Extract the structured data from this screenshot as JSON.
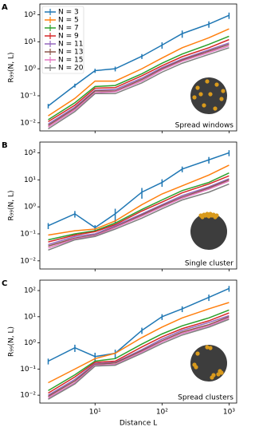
{
  "chart_data": [
    {
      "type": "line",
      "panel": "A",
      "ylabel": "R₉₉(N, L)",
      "annotation": "Spread windows",
      "xscale": "log",
      "yscale": "log",
      "xlim": [
        1.5,
        1300
      ],
      "ylim": [
        0.005,
        250
      ],
      "xticks": [
        10,
        100,
        1000
      ],
      "yticks": [
        {
          "value": 0.01,
          "label": "10⁻²"
        },
        {
          "value": 0.1,
          "label": "10⁻¹"
        },
        {
          "value": 1,
          "label": "10⁰"
        },
        {
          "value": 10,
          "label": "10¹"
        },
        {
          "value": 100,
          "label": "10²"
        }
      ],
      "legend": true,
      "legend_position": "upper left",
      "x": [
        2,
        5,
        10,
        20,
        50,
        100,
        200,
        500,
        1000
      ],
      "series": [
        {
          "name": "N = 3",
          "color": "#1f77b4",
          "values": [
            0.042,
            0.24,
            0.85,
            1.0,
            2.9,
            7.5,
            20,
            45,
            95
          ],
          "errors": [
            0.008,
            0.04,
            0.15,
            0.2,
            0.6,
            2,
            6,
            12,
            25
          ]
        },
        {
          "name": "N = 5",
          "color": "#ff7f0e",
          "values": [
            0.018,
            0.08,
            0.35,
            0.35,
            1.0,
            2.5,
            6,
            14,
            30
          ]
        },
        {
          "name": "N = 7",
          "color": "#2ca02c",
          "values": [
            0.013,
            0.055,
            0.22,
            0.24,
            0.65,
            1.6,
            3.5,
            8,
            16
          ]
        },
        {
          "name": "N = 9",
          "color": "#d62728",
          "values": [
            0.011,
            0.045,
            0.19,
            0.2,
            0.55,
            1.3,
            2.8,
            6,
            12
          ]
        },
        {
          "name": "N = 11",
          "color": "#9467bd",
          "values": [
            0.009,
            0.038,
            0.16,
            0.17,
            0.45,
            1.1,
            2.3,
            5,
            9
          ]
        },
        {
          "name": "N = 13",
          "color": "#8c564b",
          "values": [
            0.008,
            0.034,
            0.15,
            0.15,
            0.4,
            1.0,
            2.1,
            4.5,
            8
          ]
        },
        {
          "name": "N = 15",
          "color": "#e377c2",
          "values": [
            0.007,
            0.03,
            0.13,
            0.14,
            0.35,
            0.9,
            1.9,
            4,
            7
          ]
        },
        {
          "name": "N = 20",
          "color": "#7f7f7f",
          "values": [
            0.006,
            0.026,
            0.12,
            0.12,
            0.3,
            0.75,
            1.6,
            3.4,
            6
          ]
        }
      ]
    },
    {
      "type": "line",
      "panel": "B",
      "ylabel": "R₉₉(N, L)",
      "annotation": "Single cluster",
      "xscale": "log",
      "yscale": "log",
      "xlim": [
        1.5,
        1300
      ],
      "ylim": [
        0.005,
        250
      ],
      "xticks": [
        10,
        100,
        1000
      ],
      "yticks": [
        {
          "value": 0.01,
          "label": "10⁻²"
        },
        {
          "value": 0.1,
          "label": "10⁻¹"
        },
        {
          "value": 1,
          "label": "10⁰"
        },
        {
          "value": 10,
          "label": "10¹"
        },
        {
          "value": 100,
          "label": "10²"
        }
      ],
      "legend": false,
      "x": [
        2,
        5,
        10,
        20,
        50,
        100,
        200,
        500,
        1000
      ],
      "series": [
        {
          "color": "#1f77b4",
          "values": [
            0.2,
            0.55,
            0.17,
            0.55,
            3.5,
            8,
            25,
            55,
            100
          ],
          "errors": [
            0.05,
            0.15,
            0.04,
            0.3,
            1.5,
            2.5,
            6,
            15,
            25
          ]
        },
        {
          "color": "#ff7f0e",
          "values": [
            0.09,
            0.13,
            0.15,
            0.3,
            1.2,
            3,
            6,
            15,
            35
          ]
        },
        {
          "color": "#2ca02c",
          "values": [
            0.06,
            0.1,
            0.13,
            0.25,
            0.8,
            1.8,
            4,
            8,
            18
          ]
        },
        {
          "color": "#d62728",
          "values": [
            0.05,
            0.09,
            0.12,
            0.22,
            0.7,
            1.5,
            3.3,
            7,
            14
          ]
        },
        {
          "color": "#9467bd",
          "values": [
            0.04,
            0.08,
            0.1,
            0.2,
            0.55,
            1.2,
            2.6,
            5.5,
            11
          ]
        },
        {
          "color": "#8c564b",
          "values": [
            0.035,
            0.07,
            0.09,
            0.18,
            0.5,
            1.1,
            2.3,
            5,
            10
          ]
        },
        {
          "color": "#e377c2",
          "values": [
            0.03,
            0.065,
            0.085,
            0.17,
            0.45,
            1.0,
            2.1,
            4.5,
            9
          ]
        },
        {
          "color": "#7f7f7f",
          "values": [
            0.025,
            0.06,
            0.08,
            0.15,
            0.38,
            0.85,
            1.8,
            3.5,
            7
          ]
        }
      ]
    },
    {
      "type": "line",
      "panel": "C",
      "ylabel": "R₉₉(N, L)",
      "annotation": "Spread clusters",
      "xlabel": "Distance L",
      "xscale": "log",
      "yscale": "log",
      "xlim": [
        1.5,
        1300
      ],
      "ylim": [
        0.005,
        250
      ],
      "xticks": [
        {
          "value": 10,
          "label": "10¹"
        },
        {
          "value": 100,
          "label": "10²"
        },
        {
          "value": 1000,
          "label": "10³"
        }
      ],
      "yticks": [
        {
          "value": 0.01,
          "label": "10⁻²"
        },
        {
          "value": 0.1,
          "label": "10⁻¹"
        },
        {
          "value": 1,
          "label": "10⁰"
        },
        {
          "value": 10,
          "label": "10¹"
        },
        {
          "value": 100,
          "label": "10²"
        }
      ],
      "legend": false,
      "x": [
        2,
        5,
        10,
        20,
        50,
        100,
        200,
        500,
        1000
      ],
      "series": [
        {
          "color": "#1f77b4",
          "values": [
            0.2,
            0.65,
            0.3,
            0.4,
            3,
            10,
            20,
            55,
            120
          ],
          "errors": [
            0.05,
            0.2,
            0.12,
            0.15,
            0.8,
            2.5,
            5,
            15,
            30
          ]
        },
        {
          "color": "#ff7f0e",
          "values": [
            0.03,
            0.1,
            0.25,
            0.4,
            1.6,
            4,
            9,
            20,
            35
          ]
        },
        {
          "color": "#2ca02c",
          "values": [
            0.015,
            0.06,
            0.2,
            0.25,
            0.9,
            2.2,
            4.5,
            9,
            18
          ]
        },
        {
          "color": "#d62728",
          "values": [
            0.012,
            0.05,
            0.18,
            0.2,
            0.7,
            1.7,
            3.5,
            7,
            14
          ]
        },
        {
          "color": "#9467bd",
          "values": [
            0.01,
            0.04,
            0.16,
            0.18,
            0.55,
            1.4,
            3,
            6,
            11
          ]
        },
        {
          "color": "#8c564b",
          "values": [
            0.009,
            0.035,
            0.15,
            0.17,
            0.5,
            1.2,
            2.6,
            5,
            10
          ]
        },
        {
          "color": "#e377c2",
          "values": [
            0.008,
            0.03,
            0.14,
            0.15,
            0.45,
            1.1,
            2.3,
            4.5,
            9
          ]
        },
        {
          "color": "#7f7f7f",
          "values": [
            0.007,
            0.027,
            0.13,
            0.14,
            0.4,
            0.95,
            2,
            4,
            8
          ]
        }
      ]
    }
  ]
}
